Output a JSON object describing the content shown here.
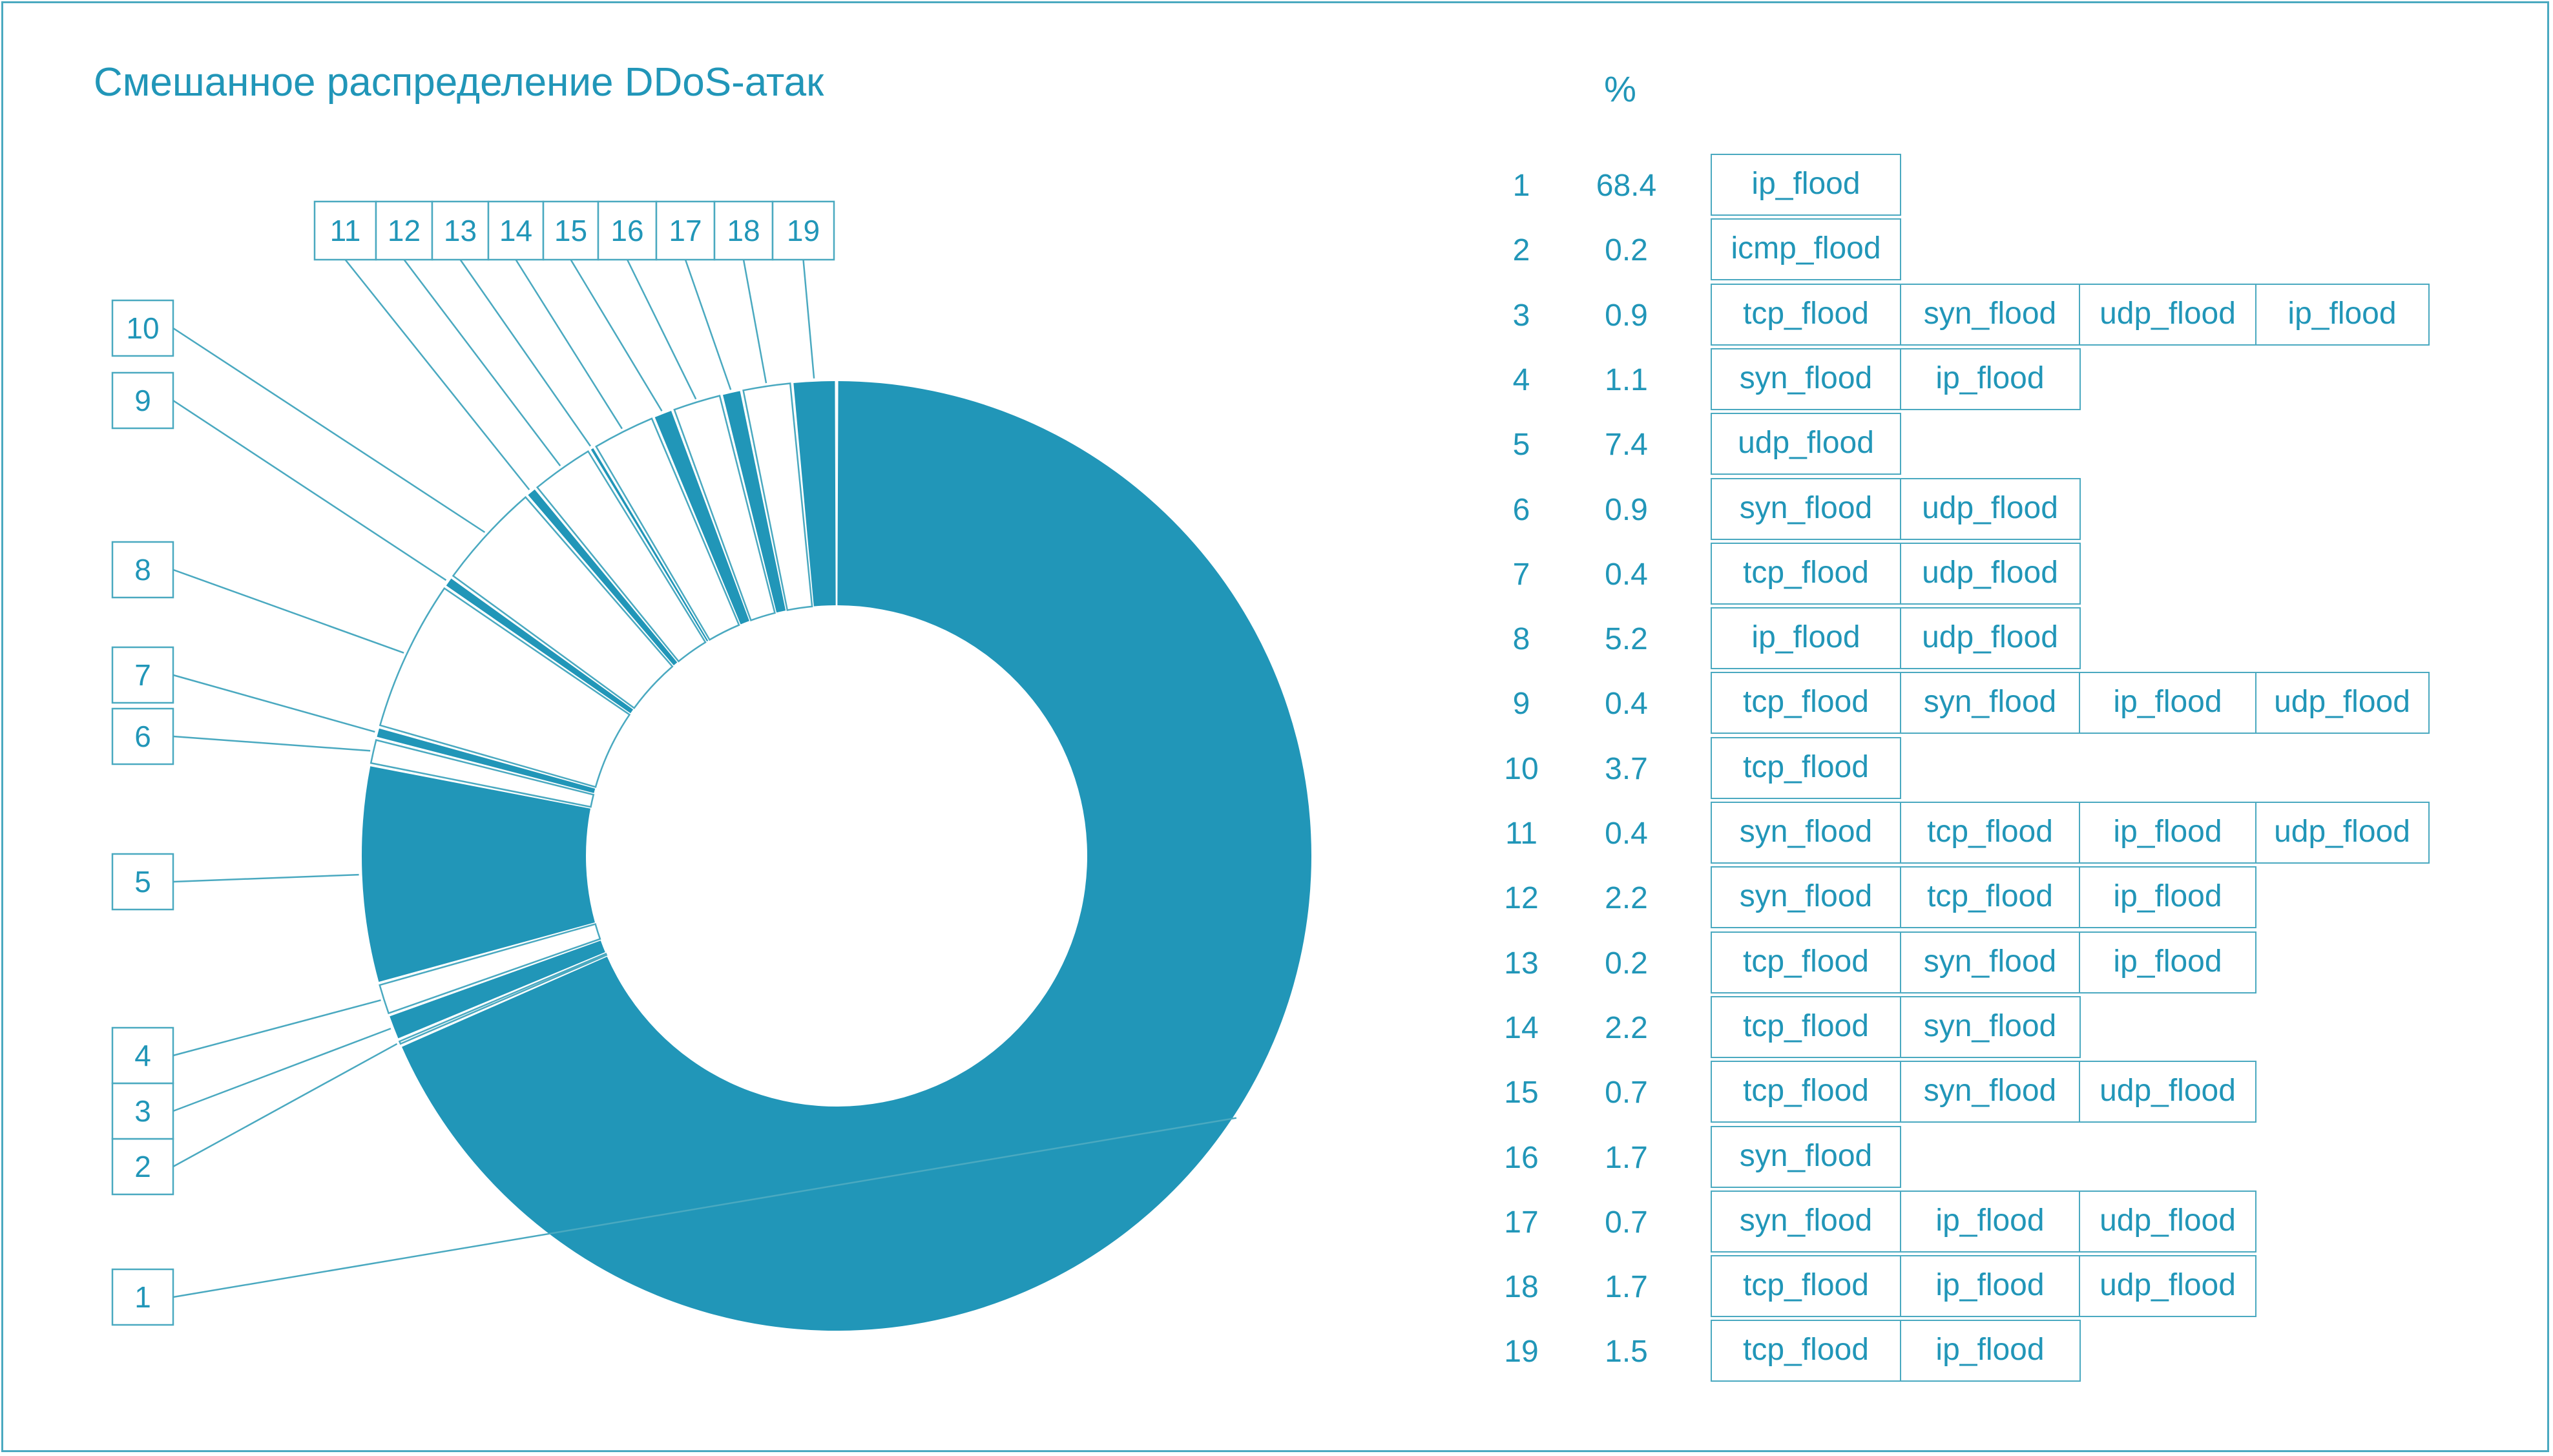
{
  "title": "Смешанное распределение DDoS-атак",
  "colors": {
    "accent": "#2196b8",
    "line": "#4aa9c0",
    "background": "#ffffff"
  },
  "table_header_pct": "%",
  "chart_data": {
    "type": "pie",
    "variant": "donut",
    "title": "Смешанное распределение DDoS-атак",
    "slices": [
      {
        "label": "1",
        "value": 68.4,
        "tags": [
          "ip_flood"
        ]
      },
      {
        "label": "2",
        "value": 0.2,
        "tags": [
          "icmp_flood"
        ]
      },
      {
        "label": "3",
        "value": 0.9,
        "tags": [
          "tcp_flood",
          "syn_flood",
          "udp_flood",
          "ip_flood"
        ]
      },
      {
        "label": "4",
        "value": 1.1,
        "tags": [
          "syn_flood",
          "ip_flood"
        ]
      },
      {
        "label": "5",
        "value": 7.4,
        "tags": [
          "udp_flood"
        ]
      },
      {
        "label": "6",
        "value": 0.9,
        "tags": [
          "syn_flood",
          "udp_flood"
        ]
      },
      {
        "label": "7",
        "value": 0.4,
        "tags": [
          "tcp_flood",
          "udp_flood"
        ]
      },
      {
        "label": "8",
        "value": 5.2,
        "tags": [
          "ip_flood",
          "udp_flood"
        ]
      },
      {
        "label": "9",
        "value": 0.4,
        "tags": [
          "tcp_flood",
          "syn_flood",
          "ip_flood",
          "udp_flood"
        ]
      },
      {
        "label": "10",
        "value": 3.7,
        "tags": [
          "tcp_flood"
        ]
      },
      {
        "label": "11",
        "value": 0.4,
        "tags": [
          "syn_flood",
          "tcp_flood",
          "ip_flood",
          "udp_flood"
        ]
      },
      {
        "label": "12",
        "value": 2.2,
        "tags": [
          "syn_flood",
          "tcp_flood",
          "ip_flood"
        ]
      },
      {
        "label": "13",
        "value": 0.2,
        "tags": [
          "tcp_flood",
          "syn_flood",
          "ip_flood"
        ]
      },
      {
        "label": "14",
        "value": 2.2,
        "tags": [
          "tcp_flood",
          "syn_flood"
        ]
      },
      {
        "label": "15",
        "value": 0.7,
        "tags": [
          "tcp_flood",
          "syn_flood",
          "udp_flood"
        ]
      },
      {
        "label": "16",
        "value": 1.7,
        "tags": [
          "syn_flood"
        ]
      },
      {
        "label": "17",
        "value": 0.7,
        "tags": [
          "syn_flood",
          "ip_flood",
          "udp_flood"
        ]
      },
      {
        "label": "18",
        "value": 1.7,
        "tags": [
          "tcp_flood",
          "ip_flood",
          "udp_flood"
        ]
      },
      {
        "label": "19",
        "value": 1.5,
        "tags": [
          "tcp_flood",
          "ip_flood"
        ]
      }
    ],
    "fill_pattern": "alternating filled / outlined slices, slice 1 filled",
    "legend": "none"
  }
}
